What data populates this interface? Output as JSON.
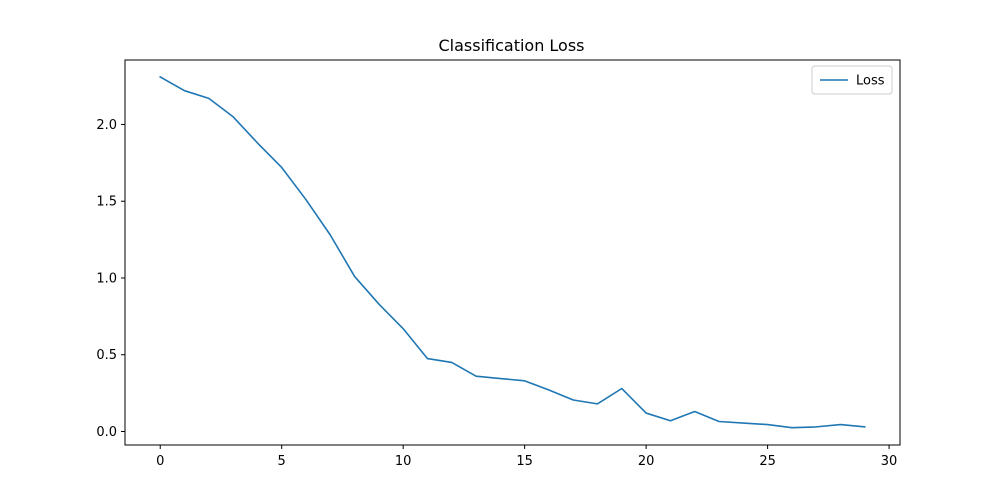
{
  "chart_data": {
    "type": "line",
    "title": "Classification Loss",
    "xlabel": "",
    "ylabel": "",
    "xlim": [
      -1.45,
      30.45
    ],
    "ylim": [
      -0.088,
      2.42
    ],
    "xticks": [
      0,
      5,
      10,
      15,
      20,
      25,
      30
    ],
    "xtick_labels": [
      "0",
      "5",
      "10",
      "15",
      "20",
      "25",
      "30"
    ],
    "yticks": [
      0.0,
      0.5,
      1.0,
      1.5,
      2.0
    ],
    "ytick_labels": [
      "0.0",
      "0.5",
      "1.0",
      "1.5",
      "2.0"
    ],
    "grid": false,
    "legend_position": "top-right",
    "series": [
      {
        "name": "Loss",
        "color": "#1f77b4",
        "x": [
          0,
          1,
          2,
          3,
          4,
          5,
          6,
          7,
          8,
          9,
          10,
          11,
          12,
          13,
          14,
          15,
          16,
          17,
          18,
          19,
          20,
          21,
          22,
          23,
          24,
          25,
          26,
          27,
          28,
          29
        ],
        "y": [
          2.31,
          2.22,
          2.17,
          2.05,
          1.88,
          1.72,
          1.51,
          1.28,
          1.01,
          0.83,
          0.67,
          0.475,
          0.45,
          0.36,
          0.345,
          0.33,
          0.27,
          0.205,
          0.18,
          0.28,
          0.12,
          0.07,
          0.13,
          0.065,
          0.055,
          0.045,
          0.025,
          0.03,
          0.045,
          0.03
        ]
      }
    ]
  }
}
